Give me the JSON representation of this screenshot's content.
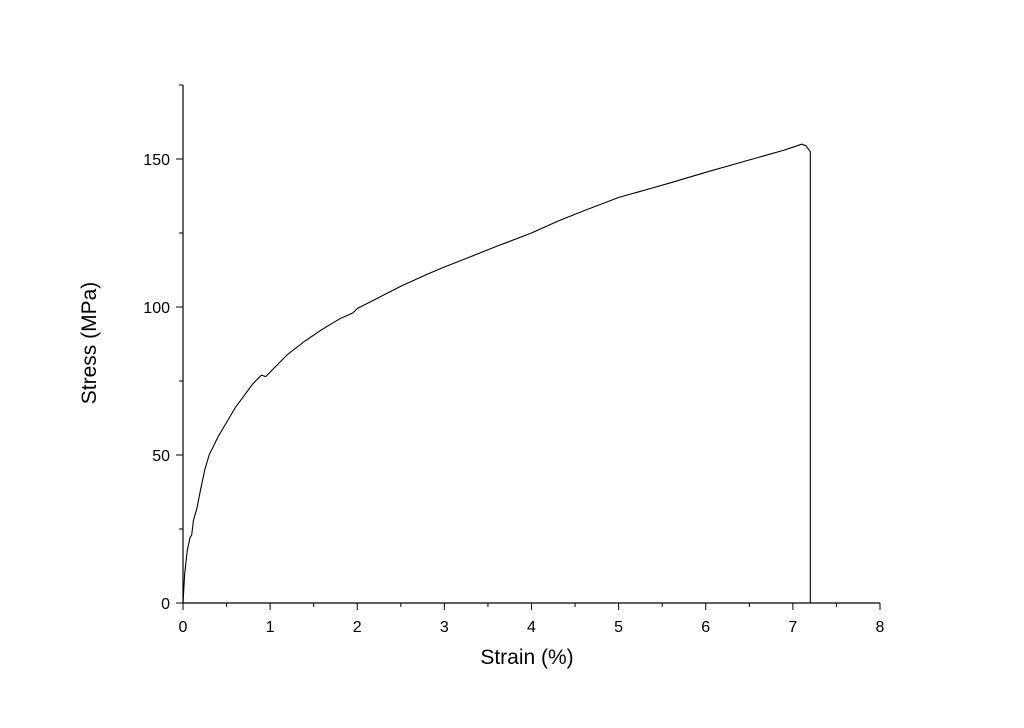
{
  "chart_data": {
    "type": "line",
    "title": "",
    "xlabel": "Strain (%)",
    "ylabel": "Stress (MPa)",
    "xlim": [
      0,
      8
    ],
    "ylim": [
      0,
      175
    ],
    "xticks": [
      0,
      1,
      2,
      3,
      4,
      5,
      6,
      7,
      8
    ],
    "yticks": [
      0,
      50,
      100,
      150
    ],
    "grid": false,
    "legend": "none",
    "line_color": "#000000",
    "series": [
      {
        "x": [
          0,
          0.02,
          0.05,
          0.08,
          0.1,
          0.12,
          0.14,
          0.16,
          0.2,
          0.25,
          0.3,
          0.35,
          0.4,
          0.5,
          0.6,
          0.7,
          0.8,
          0.9,
          0.95,
          1.0,
          1.1,
          1.2,
          1.4,
          1.6,
          1.8,
          1.95,
          2.0,
          2.2,
          2.5,
          2.8,
          3.0,
          3.3,
          3.6,
          4.0,
          4.3,
          4.6,
          5.0,
          5.3,
          5.6,
          6.0,
          6.3,
          6.6,
          6.9,
          7.0,
          7.1,
          7.15,
          7.2,
          7.2
        ],
        "y": [
          0,
          10,
          18,
          22,
          23,
          28,
          30,
          32,
          38,
          45,
          50,
          53,
          56,
          61,
          66,
          70,
          74,
          77,
          76.5,
          78,
          81,
          84,
          88.5,
          92.5,
          96,
          98,
          99.5,
          102.5,
          107,
          111,
          113.5,
          117,
          120.5,
          125,
          129,
          132.5,
          137,
          139.5,
          142,
          145.5,
          148,
          150.5,
          153,
          154,
          155,
          154.5,
          152.5,
          0
        ]
      }
    ]
  }
}
